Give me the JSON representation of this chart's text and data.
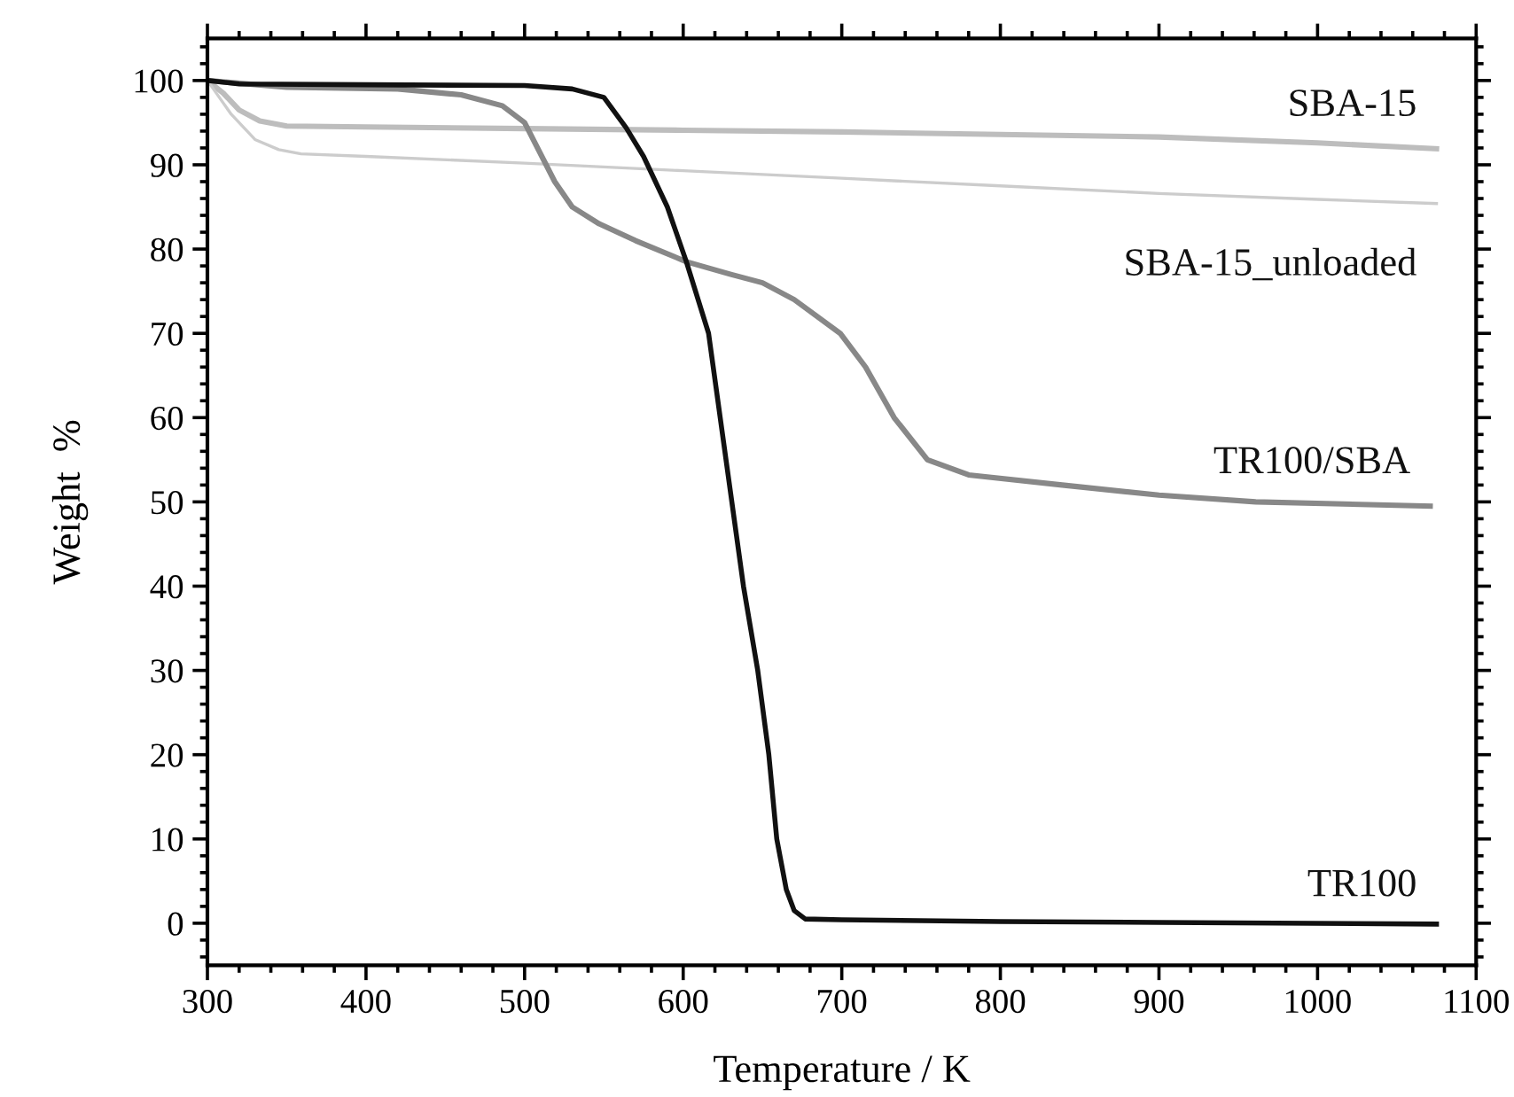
{
  "chart_data": {
    "type": "line",
    "xlabel": "Temperature / K",
    "ylabel": "Weight  %",
    "xlim": [
      300,
      1100
    ],
    "xticks": [
      300,
      400,
      500,
      600,
      700,
      800,
      900,
      1000,
      1100
    ],
    "ylim": [
      -5,
      105
    ],
    "yticks": [
      0,
      10,
      20,
      30,
      40,
      50,
      60,
      70,
      80,
      90,
      100
    ],
    "grid": false,
    "legend": false,
    "marker": "none",
    "line_style": "solid",
    "series": [
      {
        "name": "SBA-15",
        "color": "#bdbdbd",
        "x": [
          300,
          310,
          320,
          333,
          350,
          400,
          500,
          600,
          700,
          800,
          900,
          1000,
          1075
        ],
        "values": [
          100,
          98.5,
          96.5,
          95.2,
          94.6,
          94.5,
          94.3,
          94.1,
          93.9,
          93.6,
          93.3,
          92.6,
          91.9
        ]
      },
      {
        "name": "SBA-15_unloaded",
        "color": "#cccccc",
        "x": [
          300,
          315,
          330,
          345,
          359,
          400,
          500,
          600,
          700,
          800,
          900,
          1000,
          1075
        ],
        "values": [
          100,
          96,
          93,
          91.8,
          91.3,
          91,
          90.2,
          89.3,
          88.4,
          87.5,
          86.6,
          85.9,
          85.4
        ]
      },
      {
        "name": "TR100/SBA",
        "color": "#888888",
        "x": [
          300,
          350,
          420,
          460,
          486,
          500,
          519,
          530,
          547,
          570,
          602,
          630,
          650,
          670,
          699,
          715,
          733,
          754,
          780,
          839,
          900,
          961,
          1071
        ],
        "values": [
          100,
          99.2,
          99,
          98.3,
          97,
          95,
          88,
          85,
          83,
          81,
          78.5,
          77,
          76,
          74,
          70,
          66,
          60,
          55,
          53.2,
          52,
          50.8,
          50,
          49.5
        ]
      },
      {
        "name": "TR100",
        "color": "#111111",
        "x": [
          300,
          320,
          400,
          500,
          530,
          550,
          564,
          575,
          590,
          602,
          616,
          627,
          638,
          647,
          654,
          659,
          665,
          670,
          677,
          700,
          800,
          900,
          1075
        ],
        "values": [
          100,
          99.6,
          99.5,
          99.4,
          99,
          98,
          94.4,
          91,
          85,
          78.5,
          70,
          55,
          40,
          30,
          20,
          10,
          4,
          1.5,
          0.5,
          0.4,
          0.2,
          0.1,
          -0.1
        ]
      }
    ]
  }
}
